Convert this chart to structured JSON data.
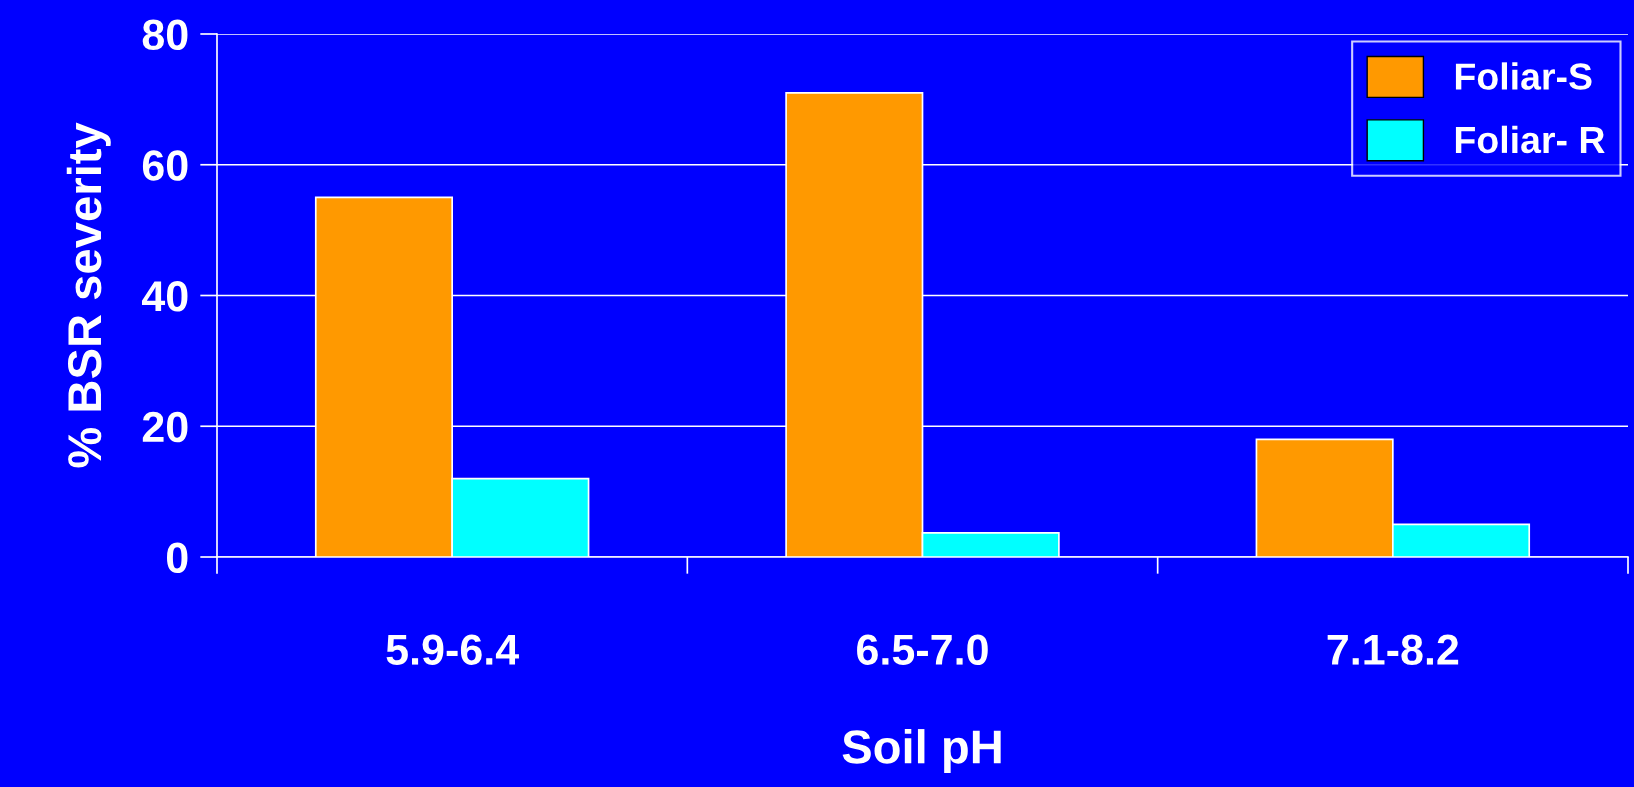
{
  "chart_data": {
    "type": "bar",
    "xlabel": "Soil pH",
    "ylabel": "% BSR severity",
    "categories": [
      "5.9-6.4",
      "6.5-7.0",
      "7.1-8.2"
    ],
    "series": [
      {
        "name": "Foliar-S",
        "color": "#ff9900",
        "values": [
          55,
          71,
          18
        ]
      },
      {
        "name": "Foliar- R",
        "color": "#00ffff",
        "values": [
          12,
          3.7,
          5
        ]
      }
    ],
    "ylim": [
      0,
      80
    ],
    "yticks": [
      0,
      20,
      40,
      60,
      80
    ],
    "grid": "y",
    "legend": "top right"
  }
}
